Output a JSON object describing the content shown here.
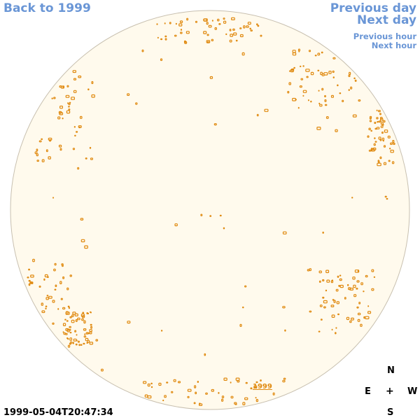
{
  "nav": {
    "back": "Back to 1999",
    "previous_day": "Previous day",
    "next_day": "Next day",
    "previous_hour": "Previous hour",
    "next_hour": "Next hour"
  },
  "compass": {
    "north": "N",
    "east": "E",
    "center": "+",
    "west": "W",
    "south": "S"
  },
  "timestamp": "1999-05-04T20:47:34",
  "year_label": "1999",
  "colors": {
    "link": "#6a96d6",
    "disk_fill": "#fffaed",
    "disk_stroke": "#c8c0b0",
    "feature": "#e08a10"
  }
}
